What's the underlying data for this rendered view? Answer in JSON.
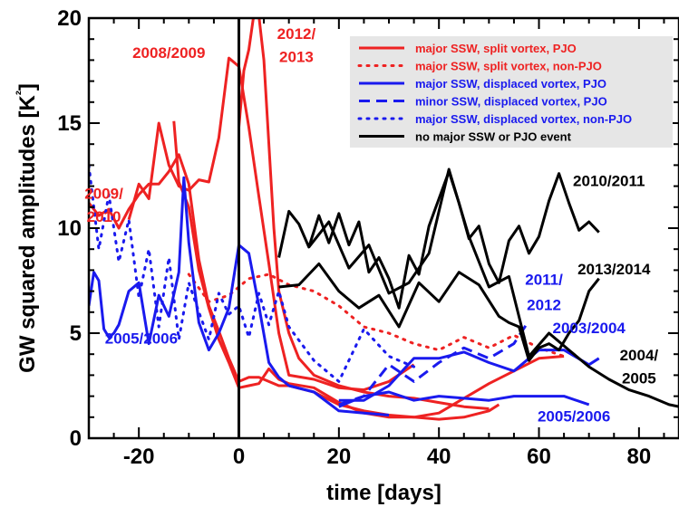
{
  "chart_data": {
    "type": "line",
    "xlabel": "time [days]",
    "ylabel": "GW squared amplitudes [K²]",
    "xlim": [
      -30,
      88
    ],
    "ylim": [
      0,
      20
    ],
    "xticks": [
      -20,
      0,
      20,
      40,
      60,
      80
    ],
    "yticks": [
      0,
      5,
      10,
      15,
      20
    ],
    "vline": 0,
    "legend": {
      "placement": "top-right",
      "background": "#e6e6e6",
      "entries": [
        {
          "label": "major SSW, split vortex, PJO",
          "color": "#ee2222",
          "dash": "solid"
        },
        {
          "label": "major SSW, split vortex, non-PJO",
          "color": "#ee2222",
          "dash": "dotted"
        },
        {
          "label": "major SSW, displaced vortex, PJO",
          "color": "#1a1aee",
          "dash": "solid"
        },
        {
          "label": "minor SSW, displaced vortex, PJO",
          "color": "#1a1aee",
          "dash": "dashed"
        },
        {
          "label": "major SSW, displaced vortex, non-PJO",
          "color": "#1a1aee",
          "dash": "dotted"
        },
        {
          "label": "no major SSW or PJO event",
          "color": "#000000",
          "dash": "solid"
        }
      ]
    },
    "annotations": [
      {
        "text": "2008/2009",
        "x": -14,
        "y": 18.1,
        "color": "#ee2222"
      },
      {
        "text": "2012/",
        "x": 11.5,
        "y": 19.0,
        "color": "#ee2222"
      },
      {
        "text": "2013",
        "x": 11.5,
        "y": 17.9,
        "color": "#ee2222"
      },
      {
        "text": "2009/",
        "x": -27,
        "y": 11.4,
        "color": "#ee2222"
      },
      {
        "text": "2010",
        "x": -27,
        "y": 10.3,
        "color": "#ee2222"
      },
      {
        "text": "2005/2006",
        "x": -19.5,
        "y": 4.5,
        "color": "#1a1aee"
      },
      {
        "text": "2010/2011",
        "x": 74,
        "y": 12.0,
        "color": "#000000"
      },
      {
        "text": "2011/",
        "x": 61,
        "y": 7.3,
        "color": "#1a1aee"
      },
      {
        "text": "2012",
        "x": 61,
        "y": 6.1,
        "color": "#1a1aee"
      },
      {
        "text": "2013/2014",
        "x": 75,
        "y": 7.8,
        "color": "#000000"
      },
      {
        "text": "2003/2004",
        "x": 70,
        "y": 5.0,
        "color": "#1a1aee"
      },
      {
        "text": "2004/",
        "x": 80,
        "y": 3.7,
        "color": "#000000"
      },
      {
        "text": "2005",
        "x": 80,
        "y": 2.6,
        "color": "#000000"
      },
      {
        "text": "2005/2006",
        "x": 67,
        "y": 0.8,
        "color": "#1a1aee"
      }
    ],
    "series": [
      {
        "legend": 0,
        "x": [
          -30,
          -28,
          -26,
          -24,
          -22,
          -20,
          -18,
          -16,
          -14,
          -12,
          -10,
          -8,
          -6,
          -4,
          -2,
          0,
          2,
          4,
          6,
          8,
          10,
          15,
          20,
          25,
          30,
          35,
          40,
          45,
          50,
          55,
          60,
          65
        ],
        "y": [
          11.2,
          10.6,
          10.9,
          10.0,
          10.9,
          11.6,
          12.1,
          12.1,
          12.7,
          13.5,
          12.1,
          8.5,
          6.3,
          5.1,
          3.8,
          2.7,
          2.9,
          2.9,
          2.7,
          2.5,
          2.5,
          2.2,
          1.6,
          1.3,
          1.1,
          1.0,
          1.2,
          1.9,
          2.6,
          3.2,
          3.8,
          3.9
        ]
      },
      {
        "legend": 0,
        "x": [
          -22,
          -20,
          -18,
          -16,
          -14,
          -12,
          -10,
          -8,
          -6,
          -4,
          -2,
          0,
          2,
          4,
          6,
          8,
          10,
          15,
          20,
          25,
          30,
          35
        ],
        "y": [
          10.4,
          12.1,
          11.4,
          15.0,
          13.0,
          12.0,
          11.8,
          12.3,
          12.2,
          14.3,
          18.1,
          17.7,
          14.8,
          11.5,
          8.3,
          5.0,
          3.0,
          2.8,
          2.4,
          2.3,
          2.7,
          3.5
        ]
      },
      {
        "legend": 0,
        "x": [
          -13,
          -12,
          -10,
          -8,
          -6,
          -4,
          -2,
          0,
          2,
          4,
          6,
          8,
          10,
          15,
          20,
          25,
          30,
          35,
          40,
          45,
          50,
          52
        ],
        "y": [
          15.1,
          12.2,
          11.0,
          8.0,
          6.2,
          4.7,
          3.6,
          2.4,
          2.5,
          2.6,
          3.3,
          2.8,
          2.6,
          2.4,
          1.7,
          1.2,
          1.0,
          1.0,
          0.9,
          1.0,
          1.3,
          1.6
        ]
      },
      {
        "legend": 0,
        "x": [
          0,
          1,
          2,
          3,
          4,
          5,
          6,
          7,
          8,
          10,
          12,
          15,
          20,
          25,
          30,
          35,
          40,
          45,
          50
        ],
        "y": [
          14.8,
          17.5,
          18.5,
          20.2,
          20.1,
          18.0,
          14.0,
          10.0,
          7.0,
          5.0,
          3.8,
          3.0,
          2.5,
          2.2,
          2.0,
          1.9,
          1.7,
          1.5,
          1.4
        ]
      },
      {
        "legend": 1,
        "x": [
          -10,
          -6,
          -2,
          2,
          6,
          10,
          15,
          20,
          25,
          30,
          35,
          40,
          45,
          50,
          55,
          60,
          65
        ],
        "y": [
          7.8,
          6.5,
          6.8,
          7.6,
          7.8,
          7.3,
          7.0,
          6.3,
          5.3,
          5.0,
          4.5,
          4.2,
          4.8,
          4.3,
          4.9,
          4.3,
          3.9
        ]
      },
      {
        "legend": 2,
        "x": [
          -30,
          -29,
          -28,
          -27,
          -26,
          -25,
          -24,
          -22,
          -20,
          -18,
          -16,
          -14,
          -12,
          -11,
          -10,
          -8,
          -6,
          -4,
          -2,
          0,
          2,
          4,
          6,
          8,
          10,
          15,
          20,
          25,
          30
        ],
        "y": [
          6.3,
          7.9,
          7.5,
          5.2,
          4.8,
          5.0,
          5.4,
          7.0,
          7.4,
          4.5,
          6.8,
          5.8,
          7.9,
          12.4,
          9.3,
          5.5,
          4.2,
          5.0,
          6.2,
          9.2,
          8.8,
          6.3,
          3.6,
          2.9,
          2.5,
          2.2,
          1.3,
          1.2,
          1.1
        ]
      },
      {
        "legend": 2,
        "x": [
          20,
          25,
          30,
          35,
          40,
          45,
          50,
          55,
          60,
          65,
          70,
          72
        ],
        "y": [
          1.8,
          1.8,
          2.5,
          3.8,
          3.8,
          4.1,
          3.6,
          3.2,
          4.2,
          4.2,
          3.5,
          3.8
        ]
      },
      {
        "legend": 2,
        "x": [
          20,
          25,
          30,
          35,
          40,
          45,
          50,
          55,
          60,
          65,
          70
        ],
        "y": [
          1.5,
          2.0,
          2.2,
          1.8,
          2.0,
          1.9,
          1.8,
          2.0,
          2.0,
          2.0,
          1.6
        ]
      },
      {
        "legend": 3,
        "x": [
          20,
          25,
          30,
          35,
          40,
          45,
          50,
          55,
          58
        ],
        "y": [
          1.6,
          2.0,
          3.5,
          2.7,
          3.6,
          4.3,
          3.8,
          4.5,
          5.6
        ]
      },
      {
        "legend": 4,
        "x": [
          -30,
          -28,
          -26,
          -24,
          -22,
          -20,
          -18,
          -16,
          -14,
          -12,
          -10,
          -8,
          -6,
          -4,
          -2,
          0,
          2,
          4,
          6,
          8,
          10,
          15,
          20,
          25,
          30,
          35
        ],
        "y": [
          13.0,
          9.0,
          11.6,
          8.4,
          10.4,
          6.7,
          9.0,
          5.3,
          8.6,
          4.7,
          7.4,
          6.0,
          4.7,
          6.9,
          5.9,
          6.3,
          4.8,
          6.9,
          5.4,
          7.0,
          5.3,
          3.7,
          2.7,
          5.2,
          3.9,
          3.4
        ]
      },
      {
        "legend": 5,
        "x": [
          8,
          10,
          12,
          14,
          16,
          18,
          20,
          22,
          24,
          26,
          28,
          30,
          32,
          34,
          36,
          38,
          40,
          42,
          44,
          46,
          48,
          50,
          52,
          54,
          56,
          58,
          60,
          62,
          64,
          66,
          68,
          70,
          72
        ],
        "y": [
          8.6,
          10.8,
          10.2,
          9.1,
          10.6,
          9.3,
          10.7,
          9.2,
          10.3,
          7.9,
          8.6,
          7.6,
          6.2,
          8.7,
          7.8,
          10.1,
          11.4,
          12.7,
          11.2,
          9.5,
          10.1,
          8.3,
          7.4,
          9.4,
          10.1,
          8.8,
          9.6,
          11.3,
          12.6,
          11.2,
          9.9,
          10.3,
          9.8
        ]
      },
      {
        "legend": 5,
        "x": [
          14,
          18,
          22,
          26,
          30,
          34,
          38,
          42,
          46,
          50,
          54,
          58,
          62,
          66,
          70,
          74,
          78,
          82,
          86,
          88
        ],
        "y": [
          9.1,
          10.3,
          8.1,
          9.2,
          6.9,
          7.4,
          8.8,
          12.8,
          9.6,
          7.2,
          7.7,
          3.9,
          5.0,
          4.2,
          3.4,
          2.8,
          2.3,
          2.0,
          1.6,
          1.5
        ]
      },
      {
        "legend": 5,
        "x": [
          8,
          12,
          16,
          20,
          24,
          28,
          32,
          36,
          40,
          44,
          48,
          52,
          54,
          56,
          58,
          60,
          62,
          64,
          66,
          68,
          70,
          72
        ],
        "y": [
          7.2,
          7.3,
          8.3,
          7.0,
          6.2,
          6.8,
          5.3,
          7.4,
          6.5,
          7.9,
          7.3,
          5.8,
          5.5,
          5.3,
          3.7,
          4.3,
          4.5,
          4.2,
          5.0,
          5.6,
          7.0,
          7.6
        ]
      }
    ]
  }
}
